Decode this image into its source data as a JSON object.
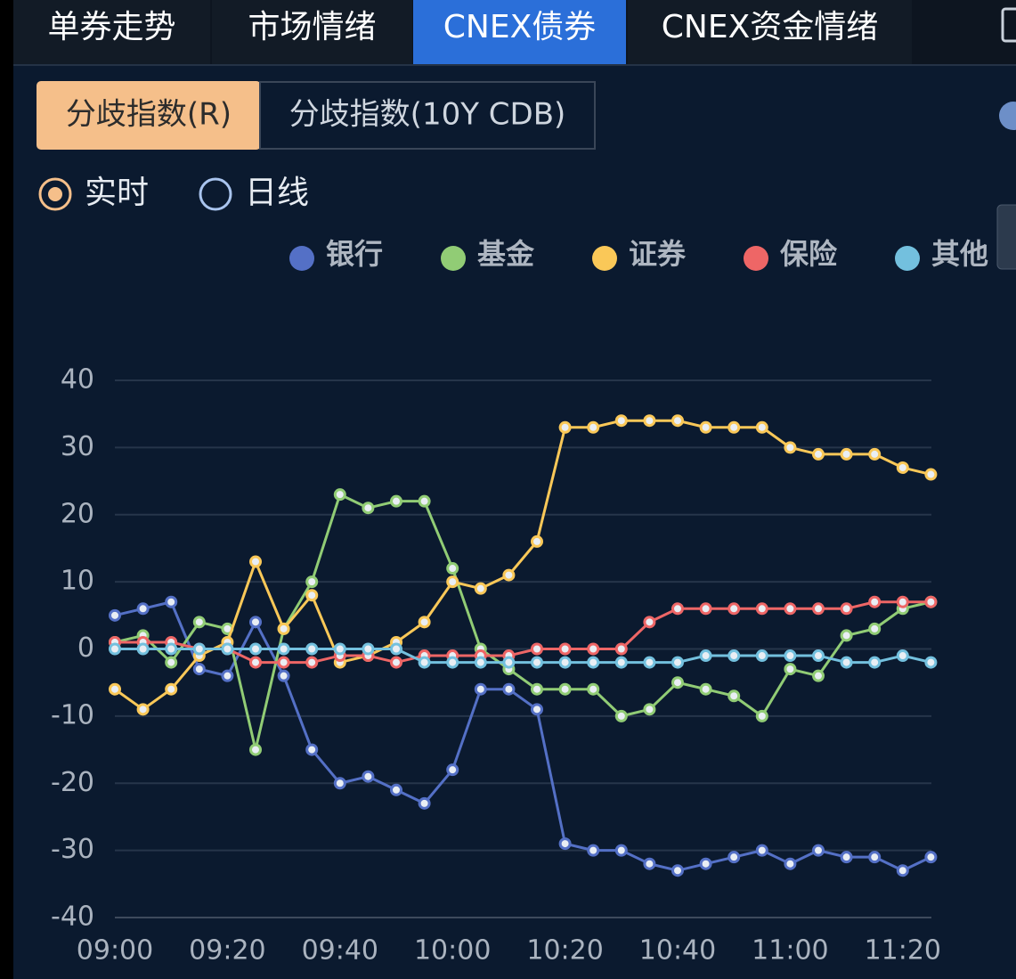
{
  "tabs": [
    "单券走势",
    "市场情绪",
    "CNEX债券",
    "CNEX资金情绪"
  ],
  "active_tab": 2,
  "index_tabs": [
    "分歧指数(R)",
    "分歧指数(10Y CDB)"
  ],
  "active_index_tab": 0,
  "modes": [
    "实时",
    "日线"
  ],
  "active_mode": 0,
  "chart_data": {
    "type": "line",
    "categories": [
      "09:00",
      null,
      null,
      null,
      "09:20",
      null,
      null,
      null,
      "09:40",
      null,
      null,
      null,
      "10:00",
      null,
      null,
      null,
      "10:20",
      null,
      null,
      null,
      "10:40",
      null,
      null,
      null,
      "11:00",
      null,
      null,
      null,
      "11:20",
      null
    ],
    "series": [
      {
        "name": "银行",
        "color": "#5470c6",
        "values": [
          5,
          6,
          7,
          -3,
          -4,
          4,
          -4,
          -15,
          -20,
          -19,
          -21,
          -23,
          -18,
          -6,
          -6,
          -9,
          -29,
          -30,
          -30,
          -32,
          -33,
          -32,
          -31,
          -30,
          -32,
          -30,
          -31,
          -31,
          -33,
          -31
        ]
      },
      {
        "name": "基金",
        "color": "#91cc75",
        "values": [
          1,
          2,
          -2,
          4,
          3,
          -15,
          3,
          10,
          23,
          21,
          22,
          22,
          12,
          0,
          -3,
          -6,
          -6,
          -6,
          -10,
          -9,
          -5,
          -6,
          -7,
          -10,
          -3,
          -4,
          2,
          3,
          6,
          7
        ]
      },
      {
        "name": "证券",
        "color": "#fac858",
        "values": [
          -6,
          -9,
          -6,
          -1,
          1,
          13,
          3,
          8,
          -2,
          -1,
          1,
          4,
          10,
          9,
          11,
          16,
          33,
          33,
          34,
          34,
          34,
          33,
          33,
          33,
          30,
          29,
          29,
          29,
          27,
          26
        ]
      },
      {
        "name": "保险",
        "color": "#ee6666",
        "values": [
          1,
          1,
          1,
          0,
          0,
          -2,
          -2,
          -2,
          -1,
          -1,
          -2,
          -1,
          -1,
          -1,
          -1,
          0,
          0,
          0,
          0,
          4,
          6,
          6,
          6,
          6,
          6,
          6,
          6,
          7,
          7,
          7
        ]
      },
      {
        "name": "其他",
        "color": "#73c0de",
        "values": [
          0,
          0,
          0,
          0,
          0,
          0,
          0,
          0,
          0,
          0,
          0,
          -2,
          -2,
          -2,
          -2,
          -2,
          -2,
          -2,
          -2,
          -2,
          -2,
          -1,
          -1,
          -1,
          -1,
          -1,
          -2,
          -2,
          -1,
          -2
        ]
      }
    ],
    "ylim": [
      -40,
      40
    ],
    "yticks": [
      -40,
      -30,
      -20,
      -10,
      0,
      10,
      20,
      30,
      40
    ],
    "grid": true,
    "legend": "top"
  }
}
